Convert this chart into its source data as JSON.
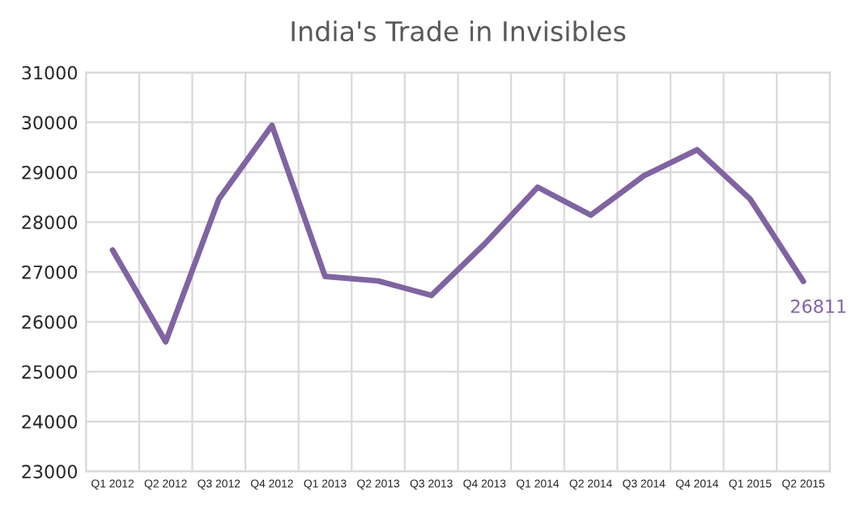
{
  "chart_data": {
    "type": "line",
    "title": "India's Trade in Invisibles",
    "categories": [
      "Q1 2012",
      "Q2 2012",
      "Q3 2012",
      "Q4 2012",
      "Q1 2013",
      "Q2 2013",
      "Q3 2013",
      "Q4 2013",
      "Q1 2014",
      "Q2 2014",
      "Q3 2014",
      "Q4 2014",
      "Q1 2015",
      "Q2 2015"
    ],
    "series": [
      {
        "color": "#8064a2",
        "values": [
          27440,
          25600,
          28460,
          29940,
          26910,
          26820,
          26530,
          27560,
          28700,
          28140,
          28930,
          29450,
          28460,
          26811
        ],
        "value_labels": [
          null,
          null,
          null,
          null,
          null,
          null,
          null,
          null,
          null,
          null,
          null,
          null,
          null,
          "26811"
        ]
      }
    ],
    "ylim": [
      23000,
      31000
    ],
    "yticks": [
      23000,
      24000,
      25000,
      26000,
      27000,
      28000,
      29000,
      30000,
      31000
    ],
    "grid": true,
    "marker": "none",
    "line_style": "solid"
  }
}
